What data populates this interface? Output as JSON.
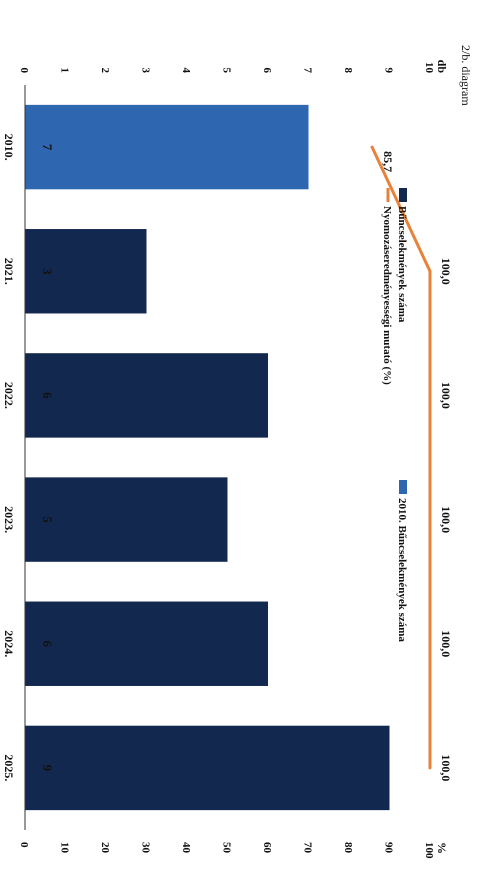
{
  "chart_data": {
    "type": "bar",
    "page_label": "2/b. diagram",
    "categories": [
      "2010.",
      "2021.",
      "2022.",
      "2023.",
      "2024.",
      "2025."
    ],
    "series": [
      {
        "name": "Bűncselekmények száma",
        "kind": "bar",
        "axis": "left",
        "values": [
          7,
          3,
          6,
          5,
          6,
          9
        ],
        "value_labels": [
          "7",
          "3",
          "6",
          "5",
          "6",
          "9"
        ],
        "colors": [
          "#2e66b0",
          "#13284f",
          "#13284f",
          "#13284f",
          "#13284f",
          "#13284f"
        ]
      },
      {
        "name": "Nyomozáseredményességi mutató (%)",
        "kind": "line",
        "axis": "right",
        "values": [
          85.7,
          100.0,
          100.0,
          100.0,
          100.0,
          100.0
        ],
        "value_labels": [
          "85,7",
          "100,0",
          "100,0",
          "100,0",
          "100,0",
          "100,0"
        ],
        "color": "#e8823a"
      }
    ],
    "legend": [
      {
        "label": "Bűncselekmények száma",
        "color": "#13284f"
      },
      {
        "label": "2010. Bűncselekmények száma",
        "color": "#2e66b0"
      },
      {
        "label": "Nyomozáseredményességi mutató (%)",
        "color": "#e8823a"
      }
    ],
    "y_left": {
      "label": "db",
      "lim": [
        0,
        10
      ],
      "ticks": [
        "0",
        "1",
        "2",
        "3",
        "4",
        "5",
        "6",
        "7",
        "8",
        "9",
        "10"
      ]
    },
    "y_right": {
      "label": "%",
      "lim": [
        0,
        100
      ],
      "ticks": [
        "0",
        "10",
        "20",
        "30",
        "40",
        "50",
        "60",
        "70",
        "80",
        "90",
        "100"
      ]
    },
    "orientation": "rotated 90° clockwise"
  }
}
